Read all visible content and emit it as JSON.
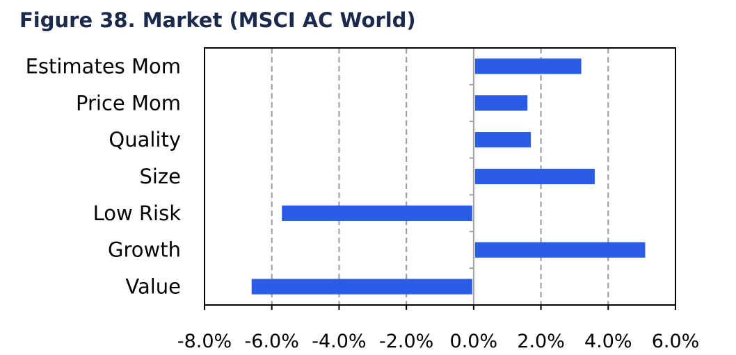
{
  "chart_data": {
    "type": "bar",
    "orientation": "horizontal",
    "title": "Figure 38. Market (MSCI AC World)",
    "xlabel": "",
    "ylabel": "",
    "categories": [
      "Estimates Mom",
      "Price Mom",
      "Quality",
      "Size",
      "Low Risk",
      "Growth",
      "Value"
    ],
    "values": [
      3.2,
      1.6,
      1.7,
      3.6,
      -5.7,
      5.1,
      -6.6
    ],
    "xlim": [
      -8,
      6
    ],
    "xticks": [
      -8,
      -6,
      -4,
      -2,
      0,
      2,
      4,
      6
    ],
    "xtick_labels": [
      "-8.0%",
      "-6.0%",
      "-4.0%",
      "-2.0%",
      "0.0%",
      "2.0%",
      "4.0%",
      "6.0%"
    ],
    "value_format": "percent",
    "grid": "vertical dashed",
    "legend": "none",
    "bar_color": "#2a5ce6"
  }
}
